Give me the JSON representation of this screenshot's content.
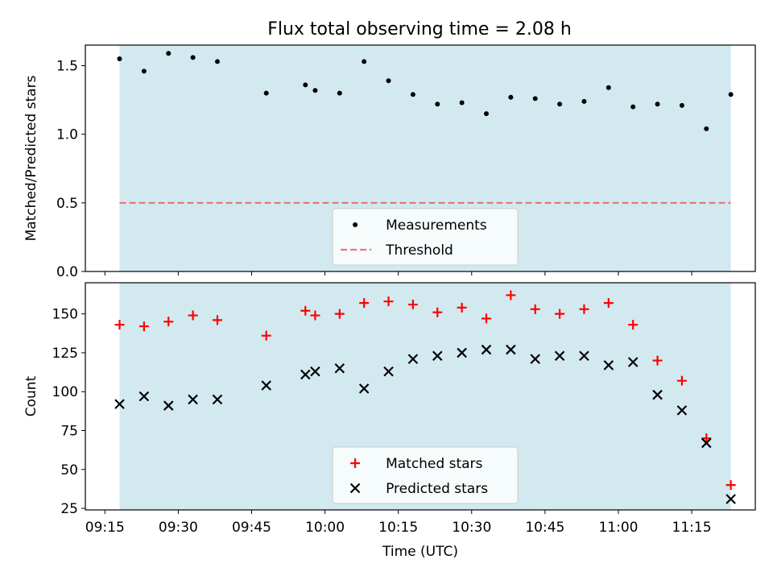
{
  "chart_data": [
    {
      "type": "scatter",
      "title": "Flux total observing time = 2.08 h",
      "ylabel": "Matched/Predicted stars",
      "xlabel": "",
      "xlim": [
        "09:11",
        "11:28"
      ],
      "ylim": [
        0,
        1.65
      ],
      "x_tick_labels": [
        "09:15",
        "09:30",
        "09:45",
        "10:00",
        "10:15",
        "10:30",
        "10:45",
        "11:00",
        "11:15"
      ],
      "y_tick_labels": [
        "0.0",
        "0.5",
        "1.0",
        "1.5"
      ],
      "y_ticks": [
        0,
        0.5,
        1.0,
        1.5
      ],
      "shaded_interval": [
        "09:18",
        "11:23"
      ],
      "shade_color": "#d3e9f0",
      "legend_position": "lower center",
      "legend": [
        "Measurements",
        "Threshold"
      ],
      "threshold": {
        "value": 0.5,
        "color": "#f07474"
      },
      "series": [
        {
          "name": "Measurements",
          "color": "#000000",
          "marker": "dot",
          "points": [
            [
              "09:18",
              1.55
            ],
            [
              "09:23",
              1.46
            ],
            [
              "09:28",
              1.59
            ],
            [
              "09:33",
              1.56
            ],
            [
              "09:38",
              1.53
            ],
            [
              "09:48",
              1.3
            ],
            [
              "09:56",
              1.36
            ],
            [
              "09:58",
              1.32
            ],
            [
              "10:03",
              1.3
            ],
            [
              "10:08",
              1.53
            ],
            [
              "10:13",
              1.39
            ],
            [
              "10:18",
              1.29
            ],
            [
              "10:23",
              1.22
            ],
            [
              "10:28",
              1.23
            ],
            [
              "10:33",
              1.15
            ],
            [
              "10:38",
              1.27
            ],
            [
              "10:43",
              1.26
            ],
            [
              "10:48",
              1.22
            ],
            [
              "10:53",
              1.24
            ],
            [
              "10:58",
              1.34
            ],
            [
              "11:03",
              1.2
            ],
            [
              "11:08",
              1.22
            ],
            [
              "11:13",
              1.21
            ],
            [
              "11:18",
              1.04
            ],
            [
              "11:23",
              1.29
            ]
          ]
        }
      ]
    },
    {
      "type": "scatter",
      "title": "",
      "ylabel": "Count",
      "xlabel": "Time (UTC)",
      "xlim": [
        "09:11",
        "11:28"
      ],
      "ylim": [
        24,
        170
      ],
      "x_tick_labels": [
        "09:15",
        "09:30",
        "09:45",
        "10:00",
        "10:15",
        "10:30",
        "10:45",
        "11:00",
        "11:15"
      ],
      "y_tick_labels": [
        "25",
        "50",
        "75",
        "100",
        "125",
        "150"
      ],
      "y_ticks": [
        25,
        50,
        75,
        100,
        125,
        150
      ],
      "shaded_interval": [
        "09:18",
        "11:23"
      ],
      "shade_color": "#d3e9f0",
      "legend_position": "lower center",
      "legend": [
        "Matched stars",
        "Predicted stars"
      ],
      "series": [
        {
          "name": "Matched stars",
          "color": "#ff0000",
          "marker": "plus",
          "points": [
            [
              "09:18",
              143
            ],
            [
              "09:23",
              142
            ],
            [
              "09:28",
              145
            ],
            [
              "09:33",
              149
            ],
            [
              "09:38",
              146
            ],
            [
              "09:48",
              136
            ],
            [
              "09:56",
              152
            ],
            [
              "09:58",
              149
            ],
            [
              "10:03",
              150
            ],
            [
              "10:08",
              157
            ],
            [
              "10:13",
              158
            ],
            [
              "10:18",
              156
            ],
            [
              "10:23",
              151
            ],
            [
              "10:28",
              154
            ],
            [
              "10:33",
              147
            ],
            [
              "10:38",
              162
            ],
            [
              "10:43",
              153
            ],
            [
              "10:48",
              150
            ],
            [
              "10:53",
              153
            ],
            [
              "10:58",
              157
            ],
            [
              "11:03",
              143
            ],
            [
              "11:08",
              120
            ],
            [
              "11:13",
              107
            ],
            [
              "11:18",
              70
            ],
            [
              "11:23",
              40
            ]
          ]
        },
        {
          "name": "Predicted stars",
          "color": "#000000",
          "marker": "x",
          "points": [
            [
              "09:18",
              92
            ],
            [
              "09:23",
              97
            ],
            [
              "09:28",
              91
            ],
            [
              "09:33",
              95
            ],
            [
              "09:38",
              95
            ],
            [
              "09:48",
              104
            ],
            [
              "09:56",
              111
            ],
            [
              "09:58",
              113
            ],
            [
              "10:03",
              115
            ],
            [
              "10:08",
              102
            ],
            [
              "10:13",
              113
            ],
            [
              "10:18",
              121
            ],
            [
              "10:23",
              123
            ],
            [
              "10:28",
              125
            ],
            [
              "10:33",
              127
            ],
            [
              "10:38",
              127
            ],
            [
              "10:43",
              121
            ],
            [
              "10:48",
              123
            ],
            [
              "10:53",
              123
            ],
            [
              "10:58",
              117
            ],
            [
              "11:03",
              119
            ],
            [
              "11:08",
              98
            ],
            [
              "11:13",
              88
            ],
            [
              "11:18",
              67
            ],
            [
              "11:23",
              31
            ]
          ]
        }
      ]
    }
  ]
}
